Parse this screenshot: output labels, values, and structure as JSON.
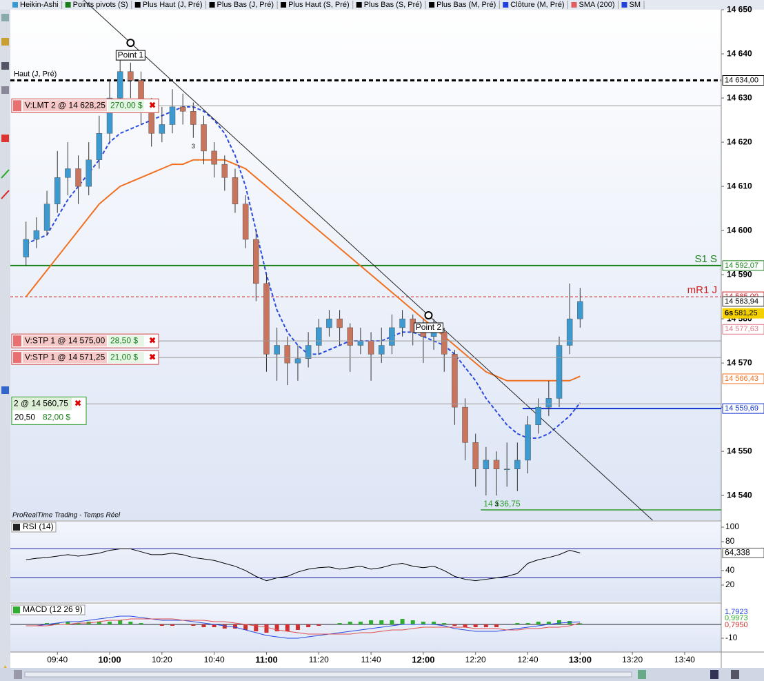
{
  "legend": [
    {
      "name": "Heikin-Ashi",
      "color": "#3d9ad1"
    },
    {
      "name": "Points pivots (S)",
      "color": "#1a7f1a"
    },
    {
      "name": "Plus Haut (J, Pré)",
      "color": "#000000"
    },
    {
      "name": "Plus Bas (J, Pré)",
      "color": "#000000"
    },
    {
      "name": "Plus Haut (S, Pré)",
      "color": "#000000"
    },
    {
      "name": "Plus Bas (S, Pré)",
      "color": "#000000"
    },
    {
      "name": "Plus Bas (M, Pré)",
      "color": "#000000"
    },
    {
      "name": "Clôture (M, Pré)",
      "color": "#2040e0"
    },
    {
      "name": "SMA (200)",
      "color": "#e06060"
    },
    {
      "name": "SM",
      "color": "#2040e0"
    }
  ],
  "footer_text": "ProRealTime Trading - Temps Réel",
  "chart_data": [
    {
      "type": "candlestick",
      "up_color": "#3d9ad1",
      "down_color": "#c9745c",
      "x": [
        "09:28",
        "09:32",
        "09:36",
        "09:40",
        "09:44",
        "09:48",
        "09:52",
        "09:56",
        "10:00",
        "10:04",
        "10:08",
        "10:12",
        "10:16",
        "10:20",
        "10:24",
        "10:28",
        "10:32",
        "10:36",
        "10:40",
        "10:44",
        "10:48",
        "10:52",
        "10:56",
        "11:00",
        "11:04",
        "11:08",
        "11:12",
        "11:16",
        "11:20",
        "11:24",
        "11:28",
        "11:32",
        "11:36",
        "11:40",
        "11:44",
        "11:48",
        "11:52",
        "11:56",
        "12:00",
        "12:04",
        "12:08",
        "12:12",
        "12:16",
        "12:20",
        "12:24",
        "12:28",
        "12:32",
        "12:36",
        "12:40",
        "12:44",
        "12:48",
        "12:52",
        "12:56",
        "13:00"
      ],
      "open": [
        14594,
        14598,
        14600,
        14606,
        14612,
        14614,
        14610,
        14616,
        14622,
        14630,
        14636,
        14634,
        14628,
        14622,
        14624,
        14628,
        14627,
        14624,
        14618,
        14615,
        14612,
        14606,
        14598,
        14588,
        14572,
        14574,
        14570,
        14571,
        14574,
        14578,
        14580,
        14578,
        14574,
        14575,
        14572,
        14574,
        14578,
        14580,
        14577,
        14576,
        14577,
        14572,
        14560,
        14552,
        14546,
        14548,
        14546,
        14546,
        14548,
        14556,
        14560,
        14562,
        14574,
        14580
      ],
      "high": [
        14602,
        14603,
        14609,
        14618,
        14620,
        14617,
        14620,
        14626,
        14634,
        14640,
        14638,
        14636,
        14630,
        14628,
        14632,
        14631,
        14629,
        14626,
        14620,
        14617,
        14614,
        14608,
        14600,
        14590,
        14578,
        14576,
        14574,
        14577,
        14580,
        14582,
        14582,
        14579,
        14578,
        14577,
        14578,
        14581,
        14582,
        14581,
        14580,
        14580,
        14578,
        14573,
        14562,
        14554,
        14551,
        14550,
        14552,
        14552,
        14558,
        14562,
        14566,
        14576,
        14588,
        14587
      ],
      "low": [
        14592,
        14596,
        14599,
        14604,
        14608,
        14606,
        14608,
        14614,
        14620,
        14628,
        14630,
        14624,
        14619,
        14620,
        14622,
        14624,
        14621,
        14615,
        14612,
        14609,
        14604,
        14596,
        14584,
        14568,
        14566,
        14565,
        14566,
        14569,
        14572,
        14576,
        14574,
        14568,
        14572,
        14566,
        14570,
        14572,
        14576,
        14574,
        14570,
        14573,
        14568,
        14556,
        14548,
        14542,
        14540,
        14540,
        14542,
        14541,
        14545,
        14554,
        14558,
        14560,
        14572,
        14578
      ],
      "close": [
        14598,
        14600,
        14606,
        14612,
        14614,
        14610,
        14616,
        14622,
        14630,
        14636,
        14634,
        14628,
        14622,
        14624,
        14628,
        14627,
        14624,
        14618,
        14615,
        14612,
        14606,
        14598,
        14588,
        14572,
        14574,
        14570,
        14571,
        14574,
        14578,
        14580,
        14578,
        14574,
        14575,
        14572,
        14574,
        14578,
        14580,
        14577,
        14576,
        14577,
        14572,
        14560,
        14552,
        14546,
        14548,
        14546,
        14546,
        14548,
        14556,
        14560,
        14562,
        14574,
        14580,
        14583.94
      ],
      "series": [
        {
          "color": "#f07020",
          "dash": false,
          "values": [
            14585,
            14588,
            14591,
            14594,
            14597,
            14600,
            14603,
            14606,
            14608,
            14610,
            14611,
            14612,
            14613,
            14614,
            14615,
            14615,
            14616,
            14616,
            14616,
            14616,
            14615,
            14614,
            14612,
            14610,
            14608,
            14606,
            14604,
            14602,
            14600,
            14598,
            14596,
            14594,
            14592,
            14590,
            14588,
            14586,
            14584,
            14582,
            14580,
            14578,
            14576,
            14574,
            14572,
            14570,
            14568,
            14567,
            14566,
            14566,
            14566,
            14566,
            14566,
            14566,
            14566,
            14567
          ]
        },
        {
          "color": "#2a4ae0",
          "dash": true,
          "values": [
            14597,
            14598,
            14599,
            14603,
            14607,
            14610,
            14613,
            14616,
            14620,
            14622,
            14623,
            14624,
            14625,
            14626,
            14627,
            14628,
            14628,
            14627,
            14625,
            14622,
            14617,
            14610,
            14600,
            14590,
            14582,
            14577,
            14574,
            14572,
            14572,
            14573,
            14574,
            14575,
            14575,
            14575,
            14575,
            14576,
            14577,
            14577,
            14576,
            14575,
            14574,
            14572,
            14569,
            14566,
            14562,
            14559,
            14556,
            14554,
            14553,
            14553,
            14554,
            14556,
            14558,
            14561
          ]
        }
      ],
      "xlim": [
        "09:22",
        "13:54"
      ],
      "xticks": [
        "09:40",
        "10:00",
        "10:20",
        "10:40",
        "11:00",
        "11:20",
        "11:40",
        "12:00",
        "12:20",
        "12:40",
        "13:00",
        "13:20",
        "13:40"
      ],
      "ylim": [
        14534.4,
        14652.2
      ],
      "yticks": [
        {
          "value": 14540,
          "label": "14 540"
        },
        {
          "value": 14550,
          "label": "14 550"
        },
        {
          "value": 14560,
          "label": "14 560"
        },
        {
          "value": 14570,
          "label": "14 570"
        },
        {
          "value": 14580,
          "label": "14 580"
        },
        {
          "value": 14590,
          "label": "14 590"
        },
        {
          "value": 14600,
          "label": "14 600"
        },
        {
          "value": 14610,
          "label": "14 610"
        },
        {
          "value": 14620,
          "label": "14 620"
        },
        {
          "value": 14630,
          "label": "14 630"
        },
        {
          "value": 14640,
          "label": "14 640"
        },
        {
          "value": 14650,
          "label": "14 650"
        }
      ],
      "levels": [
        {
          "value": 14634,
          "label": "14 634,00",
          "name": "Haut (J, Pré)",
          "name_side": "left",
          "color": "#000000",
          "line": true,
          "dash": true,
          "width": 3
        },
        {
          "value": 14592.07,
          "label": "14 592,07",
          "name": "S1 S",
          "name_side": "right",
          "color": "#1a7f1a",
          "line": true,
          "dash": false,
          "width": 2
        },
        {
          "value": 14585,
          "label": "14 585,00",
          "name": "mR1 J",
          "name_side": "right",
          "color": "#d02020",
          "line": true,
          "dash": true,
          "width": 1
        },
        {
          "value": 14583.94,
          "label": "14 583,94",
          "color": "#333333",
          "line": false
        },
        {
          "value": 14581.25,
          "label": "581,25",
          "tag": "6s",
          "color": "#f5d000",
          "line": false
        },
        {
          "value": 14577.63,
          "label": "14 577,63",
          "color": "#e07a8a",
          "line": false
        },
        {
          "value": 14566.43,
          "label": "14 566,43",
          "color": "#f07020",
          "line": false
        },
        {
          "value": 14559.69,
          "label": "14 559,69",
          "color": "#1030d0",
          "line": true,
          "dash": false,
          "width": 2,
          "from": "12:38"
        }
      ],
      "low_line": {
        "value": 14536.75,
        "label": "14 536,75",
        "from": "12:22",
        "color": "#2a9a2a"
      },
      "orders": [
        {
          "price": 14628.25,
          "label": "V:LMT 2 @ 14 628,25",
          "pnl": "270,00 $"
        },
        {
          "price": 14575,
          "label": "V:STP 1 @ 14 575,00",
          "pnl": "28,50 $"
        },
        {
          "price": 14571.25,
          "label": "V:STP 1 @ 14 571,25",
          "pnl": "21,00 $"
        }
      ],
      "position": {
        "price": 14560.75,
        "label": "2 @ 14 560,75",
        "points": "20,50",
        "pnl": "82,00 $"
      },
      "points": [
        {
          "label": "Point 1",
          "x": "10:08",
          "y": 14642.5
        },
        {
          "label": "Point 2",
          "x": "12:02",
          "y": 14580.8
        }
      ],
      "annotations": [
        {
          "text": "3",
          "x": "10:32",
          "y": 14619
        },
        {
          "text": "3",
          "x": "12:28",
          "y": 14538
        }
      ]
    },
    {
      "type": "line",
      "title": "RSI (14)",
      "color": "#000000",
      "values": [
        55,
        57,
        58,
        60,
        62,
        60,
        62,
        64,
        68,
        70,
        70,
        66,
        62,
        62,
        64,
        62,
        58,
        56,
        54,
        50,
        46,
        40,
        32,
        26,
        30,
        32,
        38,
        42,
        44,
        45,
        42,
        44,
        46,
        42,
        44,
        48,
        50,
        46,
        44,
        46,
        40,
        32,
        28,
        26,
        28,
        30,
        32,
        36,
        50,
        55,
        58,
        62,
        68,
        64.338
      ],
      "last_label": "64,338",
      "ylim": [
        -2.9,
        107.6
      ],
      "yticks": [
        20,
        40,
        80,
        100
      ],
      "bands": [
        30,
        70
      ],
      "band_color": "#1a1aa0"
    },
    {
      "type": "macd",
      "title": "MACD (12 26 9)",
      "ylim": [
        -20,
        14.5
      ],
      "yticks": [
        -10
      ],
      "series": [
        {
          "color": "#2a4ae0",
          "last_label": "1,7923",
          "values": [
            -1,
            -1,
            0,
            1,
            2,
            2,
            3,
            4,
            5,
            6,
            6,
            5,
            4,
            3,
            3,
            3,
            2,
            1,
            0,
            -1,
            -2,
            -4,
            -6,
            -8,
            -9,
            -10,
            -10,
            -9,
            -8,
            -7,
            -6,
            -5,
            -4,
            -3,
            -2,
            -1,
            0,
            0,
            0,
            0,
            -1,
            -3,
            -4,
            -5,
            -5,
            -5,
            -4,
            -3,
            -2,
            -1,
            0,
            1,
            1.5,
            1.7923
          ]
        },
        {
          "color": "#e05050",
          "last_label": "0,9973",
          "values": [
            -1,
            -1,
            -1,
            0,
            0,
            1,
            1,
            2,
            3,
            3,
            4,
            4,
            4,
            4,
            4,
            3,
            3,
            3,
            2,
            2,
            1,
            0,
            -1,
            -2,
            -4,
            -5,
            -6,
            -7,
            -7,
            -7,
            -7,
            -7,
            -6,
            -6,
            -5,
            -4,
            -4,
            -3,
            -2,
            -2,
            -2,
            -2,
            -2,
            -3,
            -3,
            -3,
            -4,
            -4,
            -3,
            -3,
            -2,
            -2,
            -1,
            0.9973
          ]
        }
      ],
      "histogram": {
        "up_color": "#2fae2f",
        "down_color": "#d03030",
        "last_label": "0,7950",
        "values": [
          0,
          0,
          1,
          1,
          2,
          1,
          2,
          2,
          2,
          3,
          2,
          1,
          0,
          -1,
          -1,
          0,
          -1,
          -2,
          -2,
          -3,
          -3,
          -4,
          -5,
          -6,
          -5,
          -5,
          -4,
          -2,
          -1,
          0,
          1,
          2,
          2,
          3,
          3,
          3,
          4,
          3,
          2,
          2,
          1,
          -1,
          -2,
          -2,
          -2,
          -2,
          0,
          1,
          1,
          2,
          2,
          3,
          2.5,
          0.795
        ]
      }
    }
  ]
}
